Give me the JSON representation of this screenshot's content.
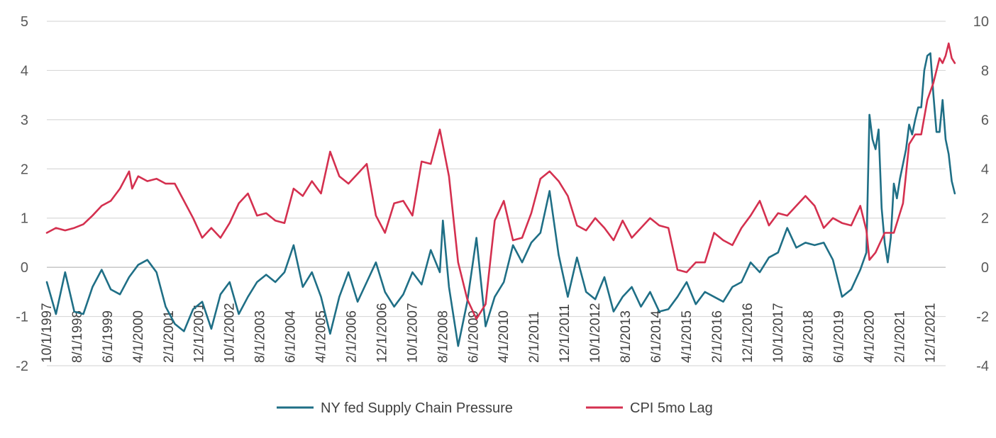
{
  "chart_data": {
    "type": "line",
    "x_tick_labels": [
      "10/1/1997",
      "8/1/1998",
      "6/1/1999",
      "4/1/2000",
      "2/1/2001",
      "12/1/2001",
      "10/1/2002",
      "8/1/2003",
      "6/1/2004",
      "4/1/2005",
      "2/1/2006",
      "12/1/2006",
      "10/1/2007",
      "8/1/2008",
      "6/1/2009",
      "4/1/2010",
      "2/1/2011",
      "12/1/2011",
      "10/1/2012",
      "8/1/2013",
      "6/1/2014",
      "4/1/2015",
      "2/1/2016",
      "12/1/2016",
      "10/1/2017",
      "8/1/2018",
      "6/1/2019",
      "4/1/2020",
      "2/1/2021",
      "12/1/2021"
    ],
    "x_range": [
      "1997-10",
      "2022-05"
    ],
    "y_left": {
      "min": -2,
      "max": 5,
      "ticks": [
        "5",
        "4",
        "3",
        "2",
        "1",
        "0",
        "-1",
        "-2"
      ]
    },
    "y_right": {
      "min": -4,
      "max": 10,
      "ticks": [
        "10",
        "8",
        "6",
        "4",
        "2",
        "0",
        "-2",
        "-4"
      ]
    },
    "grid": "horizontal",
    "legend_position": "bottom",
    "series": [
      {
        "name": "NY fed Supply Chain Pressure",
        "axis": "left",
        "color": "#1f6f86",
        "points": [
          [
            "1997-10",
            -0.3
          ],
          [
            "1998-01",
            -0.95
          ],
          [
            "1998-04",
            -0.1
          ],
          [
            "1998-07",
            -0.9
          ],
          [
            "1998-10",
            -0.95
          ],
          [
            "1999-01",
            -0.4
          ],
          [
            "1999-04",
            -0.05
          ],
          [
            "1999-07",
            -0.45
          ],
          [
            "1999-10",
            -0.55
          ],
          [
            "2000-01",
            -0.2
          ],
          [
            "2000-04",
            0.05
          ],
          [
            "2000-07",
            0.15
          ],
          [
            "2000-10",
            -0.1
          ],
          [
            "2001-01",
            -0.8
          ],
          [
            "2001-04",
            -1.15
          ],
          [
            "2001-07",
            -1.3
          ],
          [
            "2001-10",
            -0.85
          ],
          [
            "2002-01",
            -0.7
          ],
          [
            "2002-04",
            -1.25
          ],
          [
            "2002-07",
            -0.55
          ],
          [
            "2002-10",
            -0.3
          ],
          [
            "2003-01",
            -0.95
          ],
          [
            "2003-04",
            -0.6
          ],
          [
            "2003-07",
            -0.3
          ],
          [
            "2003-10",
            -0.15
          ],
          [
            "2004-01",
            -0.3
          ],
          [
            "2004-04",
            -0.1
          ],
          [
            "2004-07",
            0.45
          ],
          [
            "2004-10",
            -0.4
          ],
          [
            "2005-01",
            -0.1
          ],
          [
            "2005-04",
            -0.6
          ],
          [
            "2005-07",
            -1.35
          ],
          [
            "2005-10",
            -0.6
          ],
          [
            "2006-01",
            -0.1
          ],
          [
            "2006-04",
            -0.7
          ],
          [
            "2006-07",
            -0.3
          ],
          [
            "2006-10",
            0.1
          ],
          [
            "2007-01",
            -0.5
          ],
          [
            "2007-04",
            -0.8
          ],
          [
            "2007-07",
            -0.55
          ],
          [
            "2007-10",
            -0.1
          ],
          [
            "2008-01",
            -0.35
          ],
          [
            "2008-04",
            0.35
          ],
          [
            "2008-07",
            -0.1
          ],
          [
            "2008-08",
            0.95
          ],
          [
            "2008-10",
            -0.4
          ],
          [
            "2009-01",
            -1.6
          ],
          [
            "2009-04",
            -0.7
          ],
          [
            "2009-07",
            0.6
          ],
          [
            "2009-10",
            -1.2
          ],
          [
            "2010-01",
            -0.6
          ],
          [
            "2010-04",
            -0.3
          ],
          [
            "2010-07",
            0.45
          ],
          [
            "2010-10",
            0.1
          ],
          [
            "2011-01",
            0.5
          ],
          [
            "2011-04",
            0.7
          ],
          [
            "2011-07",
            1.55
          ],
          [
            "2011-10",
            0.25
          ],
          [
            "2012-01",
            -0.6
          ],
          [
            "2012-04",
            0.2
          ],
          [
            "2012-07",
            -0.5
          ],
          [
            "2012-10",
            -0.65
          ],
          [
            "2013-01",
            -0.2
          ],
          [
            "2013-04",
            -0.9
          ],
          [
            "2013-07",
            -0.6
          ],
          [
            "2013-10",
            -0.4
          ],
          [
            "2014-01",
            -0.8
          ],
          [
            "2014-04",
            -0.5
          ],
          [
            "2014-07",
            -0.9
          ],
          [
            "2014-10",
            -0.85
          ],
          [
            "2015-01",
            -0.6
          ],
          [
            "2015-04",
            -0.3
          ],
          [
            "2015-07",
            -0.75
          ],
          [
            "2015-10",
            -0.5
          ],
          [
            "2016-01",
            -0.6
          ],
          [
            "2016-04",
            -0.7
          ],
          [
            "2016-07",
            -0.4
          ],
          [
            "2016-10",
            -0.3
          ],
          [
            "2017-01",
            0.1
          ],
          [
            "2017-04",
            -0.1
          ],
          [
            "2017-07",
            0.2
          ],
          [
            "2017-10",
            0.3
          ],
          [
            "2018-01",
            0.8
          ],
          [
            "2018-04",
            0.4
          ],
          [
            "2018-07",
            0.5
          ],
          [
            "2018-10",
            0.45
          ],
          [
            "2019-01",
            0.5
          ],
          [
            "2019-04",
            0.15
          ],
          [
            "2019-07",
            -0.6
          ],
          [
            "2019-10",
            -0.45
          ],
          [
            "2020-01",
            -0.05
          ],
          [
            "2020-03",
            0.3
          ],
          [
            "2020-04",
            3.1
          ],
          [
            "2020-05",
            2.6
          ],
          [
            "2020-06",
            2.4
          ],
          [
            "2020-07",
            2.8
          ],
          [
            "2020-08",
            1.2
          ],
          [
            "2020-09",
            0.5
          ],
          [
            "2020-10",
            0.1
          ],
          [
            "2020-11",
            0.6
          ],
          [
            "2020-12",
            1.7
          ],
          [
            "2021-01",
            1.4
          ],
          [
            "2021-02",
            1.8
          ],
          [
            "2021-04",
            2.4
          ],
          [
            "2021-05",
            2.9
          ],
          [
            "2021-06",
            2.7
          ],
          [
            "2021-07",
            3.0
          ],
          [
            "2021-08",
            3.25
          ],
          [
            "2021-09",
            3.25
          ],
          [
            "2021-10",
            4.0
          ],
          [
            "2021-11",
            4.3
          ],
          [
            "2021-12",
            4.35
          ],
          [
            "2022-01",
            3.5
          ],
          [
            "2022-02",
            2.75
          ],
          [
            "2022-03",
            2.75
          ],
          [
            "2022-04",
            3.4
          ],
          [
            "2022-05",
            2.6
          ],
          [
            "2022-06",
            2.3
          ],
          [
            "2022-07",
            1.75
          ],
          [
            "2022-08",
            1.5
          ]
        ]
      },
      {
        "name": "CPI 5mo Lag",
        "axis": "right",
        "color": "#d4304f",
        "points": [
          [
            "1997-10",
            1.4
          ],
          [
            "1998-01",
            1.6
          ],
          [
            "1998-04",
            1.5
          ],
          [
            "1998-07",
            1.6
          ],
          [
            "1998-10",
            1.75
          ],
          [
            "1999-01",
            2.1
          ],
          [
            "1999-04",
            2.5
          ],
          [
            "1999-07",
            2.7
          ],
          [
            "1999-10",
            3.2
          ],
          [
            "2000-01",
            3.9
          ],
          [
            "2000-02",
            3.2
          ],
          [
            "2000-04",
            3.7
          ],
          [
            "2000-07",
            3.5
          ],
          [
            "2000-10",
            3.6
          ],
          [
            "2001-01",
            3.4
          ],
          [
            "2001-04",
            3.4
          ],
          [
            "2001-07",
            2.7
          ],
          [
            "2001-10",
            2.0
          ],
          [
            "2002-01",
            1.2
          ],
          [
            "2002-04",
            1.6
          ],
          [
            "2002-07",
            1.2
          ],
          [
            "2002-10",
            1.8
          ],
          [
            "2003-01",
            2.6
          ],
          [
            "2003-04",
            3.0
          ],
          [
            "2003-07",
            2.1
          ],
          [
            "2003-10",
            2.2
          ],
          [
            "2004-01",
            1.9
          ],
          [
            "2004-04",
            1.8
          ],
          [
            "2004-07",
            3.2
          ],
          [
            "2004-10",
            2.9
          ],
          [
            "2005-01",
            3.5
          ],
          [
            "2005-04",
            3.0
          ],
          [
            "2005-07",
            4.7
          ],
          [
            "2005-10",
            3.7
          ],
          [
            "2006-01",
            3.4
          ],
          [
            "2006-04",
            3.8
          ],
          [
            "2006-07",
            4.2
          ],
          [
            "2006-10",
            2.1
          ],
          [
            "2007-01",
            1.4
          ],
          [
            "2007-04",
            2.6
          ],
          [
            "2007-07",
            2.7
          ],
          [
            "2007-10",
            2.1
          ],
          [
            "2008-01",
            4.3
          ],
          [
            "2008-04",
            4.2
          ],
          [
            "2008-07",
            5.6
          ],
          [
            "2008-10",
            3.7
          ],
          [
            "2009-01",
            0.2
          ],
          [
            "2009-04",
            -1.3
          ],
          [
            "2009-07",
            -2.1
          ],
          [
            "2009-10",
            -1.5
          ],
          [
            "2010-01",
            1.9
          ],
          [
            "2010-04",
            2.7
          ],
          [
            "2010-07",
            1.1
          ],
          [
            "2010-10",
            1.2
          ],
          [
            "2011-01",
            2.2
          ],
          [
            "2011-04",
            3.6
          ],
          [
            "2011-07",
            3.9
          ],
          [
            "2011-10",
            3.5
          ],
          [
            "2012-01",
            2.9
          ],
          [
            "2012-04",
            1.7
          ],
          [
            "2012-07",
            1.5
          ],
          [
            "2012-10",
            2.0
          ],
          [
            "2013-01",
            1.6
          ],
          [
            "2013-04",
            1.1
          ],
          [
            "2013-07",
            1.9
          ],
          [
            "2013-10",
            1.2
          ],
          [
            "2014-01",
            1.6
          ],
          [
            "2014-04",
            2.0
          ],
          [
            "2014-07",
            1.7
          ],
          [
            "2014-10",
            1.6
          ],
          [
            "2015-01",
            -0.1
          ],
          [
            "2015-04",
            -0.2
          ],
          [
            "2015-07",
            0.2
          ],
          [
            "2015-10",
            0.2
          ],
          [
            "2016-01",
            1.4
          ],
          [
            "2016-04",
            1.1
          ],
          [
            "2016-07",
            0.9
          ],
          [
            "2016-10",
            1.6
          ],
          [
            "2017-01",
            2.1
          ],
          [
            "2017-04",
            2.7
          ],
          [
            "2017-07",
            1.7
          ],
          [
            "2017-10",
            2.2
          ],
          [
            "2018-01",
            2.1
          ],
          [
            "2018-04",
            2.5
          ],
          [
            "2018-07",
            2.9
          ],
          [
            "2018-10",
            2.5
          ],
          [
            "2019-01",
            1.6
          ],
          [
            "2019-04",
            2.0
          ],
          [
            "2019-07",
            1.8
          ],
          [
            "2019-10",
            1.7
          ],
          [
            "2020-01",
            2.5
          ],
          [
            "2020-03",
            1.5
          ],
          [
            "2020-04",
            0.3
          ],
          [
            "2020-06",
            0.6
          ],
          [
            "2020-09",
            1.4
          ],
          [
            "2020-12",
            1.4
          ],
          [
            "2021-03",
            2.6
          ],
          [
            "2021-05",
            5.0
          ],
          [
            "2021-07",
            5.4
          ],
          [
            "2021-09",
            5.4
          ],
          [
            "2021-11",
            6.8
          ],
          [
            "2022-01",
            7.5
          ],
          [
            "2022-03",
            8.5
          ],
          [
            "2022-04",
            8.3
          ],
          [
            "2022-05",
            8.6
          ],
          [
            "2022-06",
            9.1
          ],
          [
            "2022-07",
            8.5
          ],
          [
            "2022-08",
            8.3
          ]
        ]
      }
    ]
  }
}
